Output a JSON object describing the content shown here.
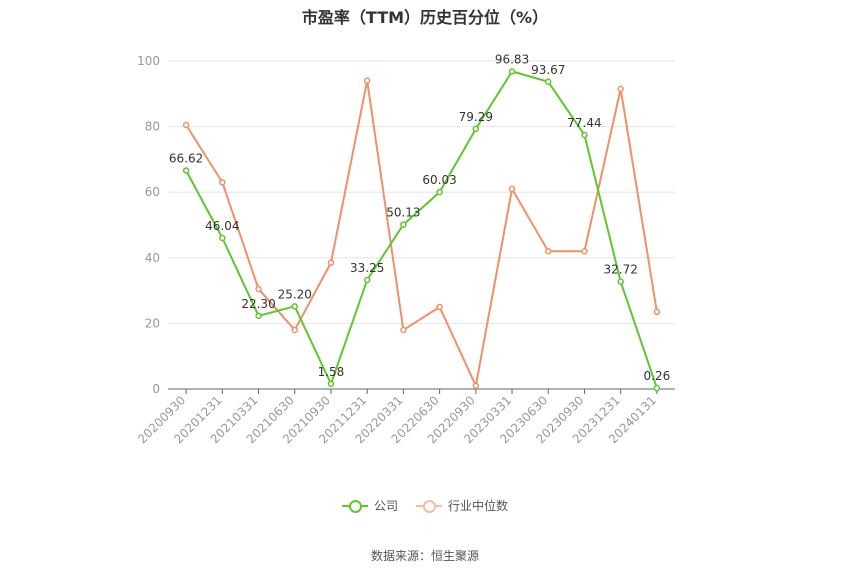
{
  "title": "市盈率（TTM）历史百分位（%）",
  "source": "数据来源：恒生聚源",
  "chart_data": {
    "type": "line",
    "categories": [
      "20200930",
      "20201231",
      "20210331",
      "20210630",
      "20210930",
      "20211231",
      "20220331",
      "20220630",
      "20220930",
      "20230331",
      "20230630",
      "20230930",
      "20231231",
      "20240131"
    ],
    "ylim": [
      0,
      100
    ],
    "yticks": [
      0,
      20,
      40,
      60,
      80,
      100
    ],
    "grid": true,
    "legend_position": "bottom",
    "series": [
      {
        "name": "公司",
        "color": "#5ec72f",
        "values": [
          66.62,
          46.04,
          22.3,
          25.2,
          1.58,
          33.25,
          50.13,
          60.03,
          79.29,
          96.83,
          93.67,
          77.44,
          32.72,
          0.26
        ],
        "labels": [
          "66.62",
          "46.04",
          "22.30",
          "25.20",
          "1.58",
          "33.25",
          "50.13",
          "60.03",
          "79.29",
          "96.83",
          "93.67",
          "77.44",
          "32.72",
          "0.26"
        ]
      },
      {
        "name": "行业中位数",
        "color": "#f0906a",
        "values": [
          80.5,
          63,
          30.5,
          18,
          38.5,
          94,
          18,
          25,
          1,
          61,
          42,
          42,
          91.5,
          23.5
        ]
      }
    ]
  }
}
